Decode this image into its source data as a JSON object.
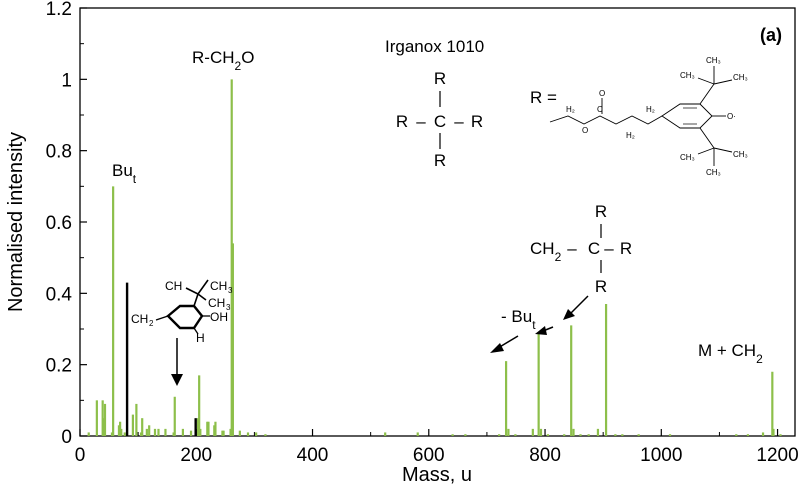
{
  "chart_data": {
    "type": "bar",
    "xlabel": "Mass, u",
    "ylabel": "Normalised intensity",
    "xlim": [
      0,
      1230
    ],
    "ylim": [
      0,
      1.2
    ],
    "x_ticks": [
      "0",
      "200",
      "400",
      "600",
      "800",
      "1000",
      "1200"
    ],
    "y_ticks": [
      "0",
      "0.2",
      "0.4",
      "0.6",
      "0.8",
      "1",
      "1.2"
    ],
    "panel_label": "(a)",
    "grid": false,
    "series": [
      {
        "color": "#8dbf4a",
        "x": [
          15,
          29,
          39,
          41,
          43,
          55,
          57,
          67,
          69,
          71,
          77,
          91,
          97,
          105,
          107,
          115,
          119,
          129,
          135,
          147,
          161,
          163,
          177,
          191,
          203,
          205,
          207,
          219,
          221,
          231,
          233,
          245,
          247,
          259,
          261,
          263,
          275,
          289,
          303,
          319,
          525,
          581,
          641,
          663,
          721,
          733,
          737,
          749,
          779,
          789,
          793,
          805,
          833,
          845,
          849,
          861,
          875,
          891,
          905,
          921,
          933,
          961,
          1015,
          1129,
          1149,
          1175,
          1191,
          1193,
          1205
        ],
        "values": [
          0.01,
          0.1,
          0.1,
          0.05,
          0.09,
          0.01,
          0.7,
          0.03,
          0.04,
          0.02,
          0.01,
          0.06,
          0.09,
          0.01,
          0.05,
          0.02,
          0.03,
          0.02,
          0.02,
          0.02,
          0.01,
          0.11,
          0.02,
          0.015,
          0.05,
          0.17,
          0.02,
          0.04,
          0.04,
          0.03,
          0.04,
          0.015,
          0.015,
          0.02,
          1.0,
          0.54,
          0.015,
          0.01,
          0.01,
          0.005,
          0.01,
          0.01,
          0.005,
          0.005,
          0.005,
          0.21,
          0.02,
          0.005,
          0.02,
          0.29,
          0.02,
          0.005,
          0.005,
          0.31,
          0.02,
          0.005,
          0.005,
          0.02,
          0.37,
          0.005,
          0.005,
          0.005,
          0.005,
          0.005,
          0.005,
          0.01,
          0.18,
          0.02,
          0.005
        ]
      },
      {
        "color": "#000000",
        "x": [
          81,
          199
        ],
        "values": [
          0.43,
          0.05
        ]
      }
    ],
    "annotations": {
      "but_main": "Bu",
      "but_sub": "t",
      "rch2o_a": "R-CH",
      "rch2o_sub": "2",
      "rch2o_b": "O",
      "irganox": "Irganox 1010",
      "m_ch2_a": "M + CH",
      "m_ch2_sub": "2",
      "minus_but_a": "- Bu",
      "minus_but_sub": "t",
      "r_equals": "R =",
      "r_letter": "R",
      "c_letter": "C",
      "dash": "–",
      "ch2_main": "CH",
      "ch2_sub": "2",
      "frag_oh": "OH",
      "frag_h": "H",
      "frag_ch3": "CH",
      "frag_3": "3",
      "small_h2": "H₂",
      "small_o": "O",
      "small_c": "C",
      "small_ch3": "CH₃",
      "small_c_plain": "C",
      "small_o_rad": "O·"
    }
  }
}
